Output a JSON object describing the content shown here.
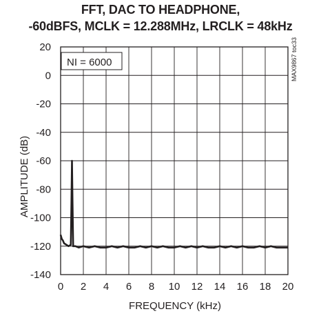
{
  "chart_data": {
    "type": "line",
    "title": "FFT, DAC TO HEADPHONE,",
    "subtitle": "-60dBFS, MCLK = 12.288MHz, LRCLK = 48kHz",
    "xlabel": "FREQUENCY (kHz)",
    "ylabel": "AMPLITUDE (dB)",
    "xlim": [
      0,
      20
    ],
    "ylim": [
      -140,
      20
    ],
    "xticks": [
      0,
      2,
      4,
      6,
      8,
      10,
      12,
      14,
      16,
      18,
      20
    ],
    "yticks": [
      20,
      0,
      -20,
      -40,
      -60,
      -80,
      -100,
      -120,
      -140
    ],
    "grid": true,
    "annotation": "NI = 6000",
    "part_note": "MAX9867 toc33",
    "series": [
      {
        "color": "#231f20",
        "x": [
          0.0,
          0.1,
          0.2,
          0.3,
          0.5,
          0.7,
          0.9,
          0.95,
          1.0,
          1.05,
          1.1,
          1.3,
          1.6,
          2,
          2.5,
          3,
          3.5,
          4,
          4.5,
          5,
          5.5,
          6,
          6.5,
          7,
          7.5,
          8,
          8.5,
          9,
          9.5,
          10,
          10.5,
          11,
          11.5,
          12,
          12.5,
          13,
          13.5,
          14,
          14.5,
          15,
          15.5,
          16,
          16.5,
          17,
          17.5,
          18,
          18.5,
          19,
          19.5,
          20
        ],
        "y": [
          -112,
          -115,
          -116,
          -118,
          -119,
          -120,
          -119,
          -90,
          -60,
          -90,
          -120,
          -120,
          -121,
          -120,
          -121,
          -120,
          -121,
          -121,
          -120,
          -121,
          -120,
          -121,
          -121,
          -120,
          -121,
          -120,
          -121,
          -120,
          -121,
          -121,
          -120,
          -121,
          -120,
          -121,
          -120,
          -121,
          -121,
          -120,
          -121,
          -120,
          -121,
          -120,
          -121,
          -121,
          -120,
          -121,
          -120,
          -121,
          -121,
          -121
        ]
      }
    ]
  }
}
